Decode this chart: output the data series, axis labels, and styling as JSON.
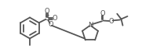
{
  "bg_color": "#ffffff",
  "line_color": "#555555",
  "line_width": 1.3,
  "figsize": [
    2.05,
    0.72
  ],
  "dpi": 100,
  "xlim": [
    0,
    20.5
  ],
  "ylim": [
    0,
    7.2
  ]
}
